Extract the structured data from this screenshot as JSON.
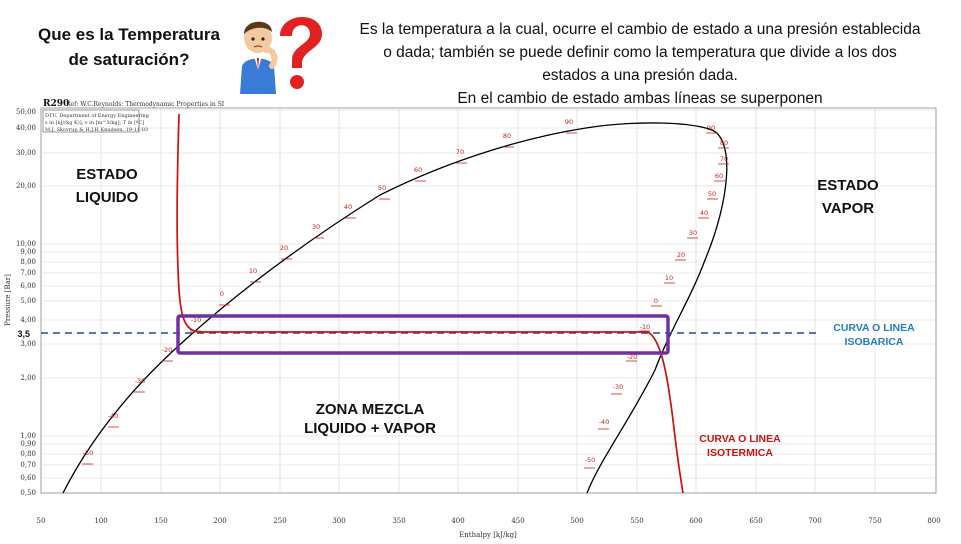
{
  "title": {
    "line1": "Que es la Temperatura",
    "line2": "de saturación?"
  },
  "description": [
    "Es la temperatura a la cual, ocurre el cambio de estado a una presión establecida",
    "o dada; también se puede definir como la temperatura que divide a los dos",
    "estados a una presión dada.",
    "En el cambio de estado ambas líneas se superponen"
  ],
  "icon": "thinking-person-question-mark-icon",
  "diagram": {
    "fluid": "R290",
    "reference": "Ref: W.C.Reynolds: Thermodynamic Properties in SI",
    "info_box": [
      "DTU, Department of Energy Engineering",
      "s in [kJ/(kg K)], v in [m^3/kg], T in [ºC]",
      "M.J. Skovrup & H.J.H Knudsen. 19-11-03"
    ],
    "x_axis_label": "Enthalpy [kJ/kg]",
    "y_axis_label": "Pressure [Bar]",
    "x_ticks": [
      "50",
      "100",
      "150",
      "200",
      "250",
      "300",
      "350",
      "400",
      "450",
      "500",
      "550",
      "600",
      "650",
      "700",
      "750",
      "800"
    ],
    "y_ticks": [
      "0,50",
      "0,60",
      "0,70",
      "0,80",
      "0,90",
      "1,00",
      "2,00",
      "3,00",
      "4,00",
      "5,00",
      "6,00",
      "7,00",
      "8,00",
      "9,00",
      "10,00",
      "20,00",
      "30,00",
      "40,00",
      "50,00"
    ],
    "liquid_temps": [
      "-50",
      "-40",
      "-30",
      "-20",
      "-10",
      "0",
      "10",
      "20",
      "30",
      "40",
      "50",
      "60",
      "70",
      "80",
      "90"
    ],
    "vapor_temps": [
      "-50",
      "-40",
      "-30",
      "-20",
      "-10",
      "0",
      "10",
      "20",
      "30",
      "40",
      "50",
      "60",
      "70",
      "80",
      "90"
    ],
    "pressure_marker": "3,5",
    "labels": {
      "liquid": [
        "ESTADO",
        "LIQUIDO"
      ],
      "vapor": [
        "ESTADO",
        "VAPOR"
      ],
      "mix": [
        "ZONA MEZCLA",
        "LIQUIDO + VAPOR"
      ],
      "isobar": [
        "CURVA O LINEA",
        "ISOBARICA"
      ],
      "isotherm": [
        "CURVA O LINEA",
        "ISOTERMICA"
      ]
    },
    "colors": {
      "isobar": "#1f4e9c",
      "isotherm": "#cc1111",
      "highlight": "#7030a0",
      "dome": "#000000"
    }
  }
}
